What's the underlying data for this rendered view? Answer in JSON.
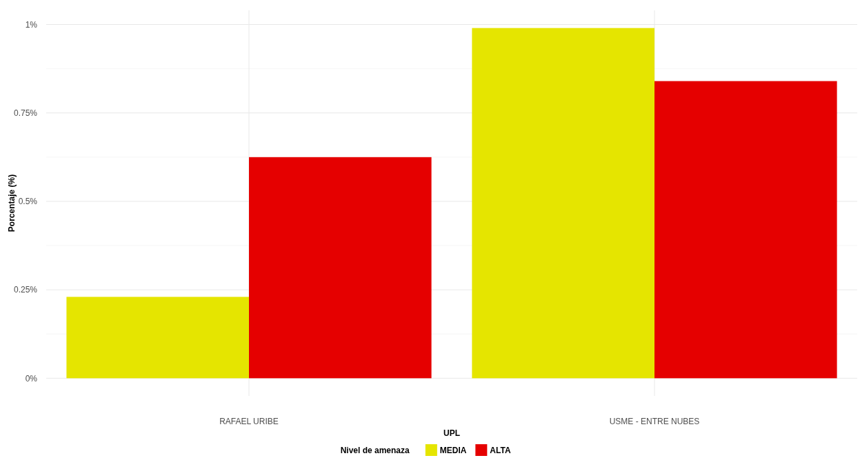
{
  "chart_data": {
    "type": "bar",
    "xlabel": "UPL",
    "ylabel": "Porcentaje (%)",
    "legend_title": "Nivel de amenaza",
    "categories": [
      "RAFAEL URIBE",
      "USME - ENTRE NUBES"
    ],
    "series": [
      {
        "name": "MEDIA",
        "color": "#e5e500",
        "values": [
          0.23,
          0.99
        ]
      },
      {
        "name": "ALTA",
        "color": "#e50000",
        "values": [
          0.625,
          0.84
        ]
      }
    ],
    "ylim": [
      -0.05,
      1.04
    ],
    "yticks": [
      {
        "value": 0,
        "label": "0%"
      },
      {
        "value": 0.25,
        "label": "0.25%"
      },
      {
        "value": 0.5,
        "label": "0.5%"
      },
      {
        "value": 0.75,
        "label": "0.75%"
      },
      {
        "value": 1,
        "label": "1%"
      }
    ],
    "grid": true,
    "legend": "bottom"
  }
}
